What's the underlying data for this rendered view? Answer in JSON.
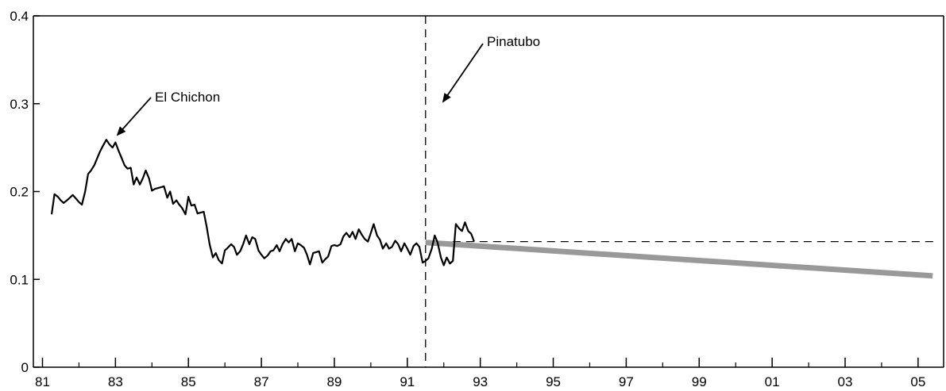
{
  "chart_data": {
    "type": "line",
    "title": "",
    "xlabel": "",
    "ylabel": "",
    "xlim": [
      1981.0,
      2005.5
    ],
    "ylim": [
      0,
      0.4
    ],
    "grid": false,
    "x_ticks": [
      "81",
      "83",
      "85",
      "87",
      "89",
      "91",
      "93",
      "95",
      "97",
      "99",
      "01",
      "03",
      "05"
    ],
    "x_tick_values": [
      1981,
      1983,
      1985,
      1987,
      1989,
      1991,
      1993,
      1995,
      1997,
      1999,
      2001,
      2003,
      2005
    ],
    "y_ticks": [
      "0",
      "0.1",
      "0.2",
      "0.3",
      "0.4"
    ],
    "y_tick_values": [
      0,
      0.1,
      0.2,
      0.3,
      0.4
    ],
    "series": [
      {
        "color": "#000000",
        "segments": [
          [
            [
              1981.25,
              0.174
            ],
            [
              1981.33,
              0.197
            ],
            [
              1981.42,
              0.194
            ],
            [
              1981.5,
              0.19
            ],
            [
              1981.58,
              0.187
            ],
            [
              1981.67,
              0.19
            ],
            [
              1981.75,
              0.193
            ],
            [
              1981.83,
              0.196
            ],
            [
              1981.92,
              0.192
            ],
            [
              1982.0,
              0.188
            ],
            [
              1982.08,
              0.185
            ],
            [
              1982.17,
              0.2
            ],
            [
              1982.25,
              0.22
            ],
            [
              1982.33,
              0.224
            ],
            [
              1982.42,
              0.23
            ],
            [
              1982.5,
              0.238
            ],
            [
              1982.58,
              0.246
            ],
            [
              1982.67,
              0.253
            ],
            [
              1982.75,
              0.259
            ],
            [
              1982.83,
              0.254
            ],
            [
              1982.92,
              0.25
            ],
            [
              1983.0,
              0.256
            ],
            [
              1983.08,
              0.247
            ],
            [
              1983.17,
              0.238
            ],
            [
              1983.25,
              0.23
            ],
            [
              1983.33,
              0.226
            ],
            [
              1983.42,
              0.227
            ],
            [
              1983.5,
              0.208
            ],
            [
              1983.58,
              0.216
            ],
            [
              1983.67,
              0.208
            ],
            [
              1983.75,
              0.215
            ],
            [
              1983.83,
              0.224
            ],
            [
              1983.92,
              0.215
            ],
            [
              1984.0,
              0.201
            ],
            [
              1984.08,
              0.203
            ],
            [
              1984.17,
              0.204
            ],
            [
              1984.25,
              0.205
            ],
            [
              1984.33,
              0.206
            ],
            [
              1984.42,
              0.193
            ],
            [
              1984.5,
              0.2
            ],
            [
              1984.58,
              0.186
            ],
            [
              1984.67,
              0.19
            ],
            [
              1984.75,
              0.185
            ],
            [
              1984.83,
              0.181
            ],
            [
              1984.92,
              0.174
            ],
            [
              1985.0,
              0.194
            ],
            [
              1985.08,
              0.184
            ],
            [
              1985.17,
              0.185
            ],
            [
              1985.25,
              0.175
            ],
            [
              1985.33,
              0.176
            ],
            [
              1985.42,
              0.177
            ],
            [
              1985.5,
              0.16
            ],
            [
              1985.58,
              0.14
            ],
            [
              1985.67,
              0.125
            ],
            [
              1985.75,
              0.13
            ],
            [
              1985.83,
              0.122
            ],
            [
              1985.92,
              0.118
            ],
            [
              1986.0,
              0.133
            ],
            [
              1986.08,
              0.136
            ],
            [
              1986.17,
              0.14
            ],
            [
              1986.25,
              0.137
            ],
            [
              1986.33,
              0.128
            ],
            [
              1986.42,
              0.132
            ],
            [
              1986.5,
              0.14
            ],
            [
              1986.58,
              0.15
            ],
            [
              1986.67,
              0.14
            ],
            [
              1986.75,
              0.148
            ],
            [
              1986.83,
              0.146
            ],
            [
              1986.92,
              0.133
            ],
            [
              1987.0,
              0.128
            ],
            [
              1987.08,
              0.124
            ],
            [
              1987.17,
              0.127
            ],
            [
              1987.25,
              0.132
            ],
            [
              1987.33,
              0.133
            ],
            [
              1987.42,
              0.139
            ],
            [
              1987.5,
              0.132
            ],
            [
              1987.58,
              0.14
            ],
            [
              1987.67,
              0.146
            ],
            [
              1987.75,
              0.142
            ],
            [
              1987.83,
              0.146
            ],
            [
              1987.92,
              0.132
            ],
            [
              1988.0,
              0.141
            ],
            [
              1988.08,
              0.139
            ],
            [
              1988.17,
              0.136
            ],
            [
              1988.25,
              0.128
            ],
            [
              1988.33,
              0.117
            ],
            [
              1988.42,
              0.13
            ],
            [
              1988.5,
              0.131
            ],
            [
              1988.58,
              0.132
            ],
            [
              1988.67,
              0.119
            ],
            [
              1988.75,
              0.123
            ],
            [
              1988.83,
              0.126
            ],
            [
              1988.92,
              0.138
            ],
            [
              1989.0,
              0.139
            ],
            [
              1989.08,
              0.138
            ],
            [
              1989.17,
              0.14
            ],
            [
              1989.25,
              0.149
            ],
            [
              1989.33,
              0.153
            ],
            [
              1989.42,
              0.148
            ],
            [
              1989.5,
              0.154
            ],
            [
              1989.58,
              0.146
            ],
            [
              1989.67,
              0.157
            ],
            [
              1989.75,
              0.151
            ],
            [
              1989.83,
              0.146
            ],
            [
              1989.92,
              0.143
            ],
            [
              1990.0,
              0.153
            ],
            [
              1990.08,
              0.163
            ],
            [
              1990.17,
              0.15
            ],
            [
              1990.25,
              0.145
            ],
            [
              1990.33,
              0.135
            ],
            [
              1990.42,
              0.141
            ],
            [
              1990.5,
              0.135
            ],
            [
              1990.58,
              0.137
            ],
            [
              1990.67,
              0.144
            ],
            [
              1990.75,
              0.14
            ],
            [
              1990.83,
              0.132
            ],
            [
              1990.92,
              0.141
            ],
            [
              1991.0,
              0.135
            ],
            [
              1991.08,
              0.128
            ],
            [
              1991.17,
              0.138
            ],
            [
              1991.25,
              0.141
            ],
            [
              1991.33,
              0.137
            ],
            [
              1991.42,
              0.119
            ],
            [
              1991.5,
              0.121
            ],
            [
              1991.58,
              0.124
            ],
            [
              1991.67,
              0.135
            ],
            [
              1991.75,
              0.15
            ],
            [
              1991.83,
              0.142
            ],
            [
              1991.92,
              0.125
            ],
            [
              1992.0,
              0.116
            ],
            [
              1992.08,
              0.125
            ],
            [
              1992.17,
              0.118
            ],
            [
              1992.25,
              0.121
            ],
            [
              1992.33,
              0.163
            ],
            [
              1992.42,
              0.158
            ],
            [
              1992.5,
              0.155
            ],
            [
              1992.58,
              0.165
            ],
            [
              1992.67,
              0.155
            ],
            [
              1992.75,
              0.152
            ],
            [
              1992.83,
              0.143
            ]
          ]
        ]
      }
    ],
    "annotations": [
      {
        "text": "El Chichon",
        "x": 1982.8,
        "y": 0.26
      },
      {
        "text": "Pinatubo",
        "x": 1991.5,
        "y": 0.3
      }
    ],
    "reference_lines": [
      {
        "orientation": "vertical",
        "x": 1991.5,
        "style": "dashed"
      },
      {
        "orientation": "horizontal",
        "y": 0.143,
        "x_from": 1991.5,
        "x_to": 2005.5,
        "style": "dashed"
      }
    ],
    "trend_line": {
      "color": "#999999",
      "from": [
        1991.5,
        0.142
      ],
      "to": [
        2005.4,
        0.104
      ]
    }
  }
}
